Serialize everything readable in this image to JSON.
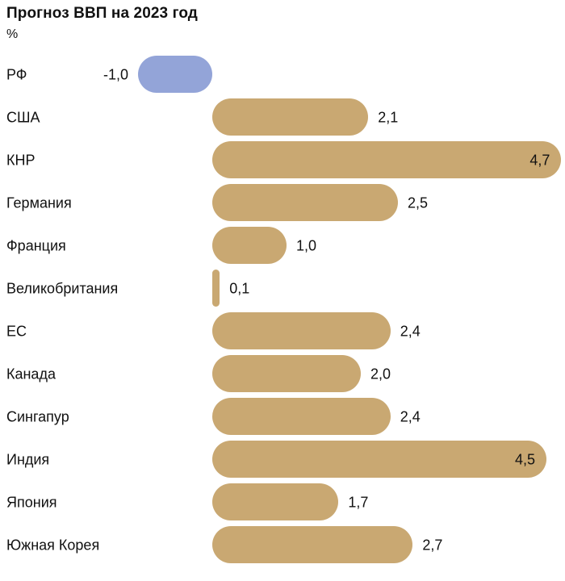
{
  "chart_data": {
    "type": "bar",
    "orientation": "horizontal",
    "title": "Прогноз ВВП на 2023 год",
    "subtitle": "%",
    "categories": [
      "РФ",
      "США",
      "КНР",
      "Германия",
      "Франция",
      "Великобритания",
      "ЕС",
      "Канада",
      "Сингапур",
      "Индия",
      "Япония",
      "Южная Корея"
    ],
    "values": [
      -1.0,
      2.1,
      4.7,
      2.5,
      1.0,
      0.1,
      2.4,
      2.0,
      2.4,
      4.5,
      1.7,
      2.7
    ],
    "value_labels": [
      "-1,0",
      "2,1",
      "4,7",
      "2,5",
      "1,0",
      "0,1",
      "2,4",
      "2,0",
      "2,4",
      "4,5",
      "1,7",
      "2,7"
    ],
    "colors": {
      "default": "#C9A872",
      "highlight": "#93A4D8"
    },
    "highlight_index": 0,
    "xlim": [
      -1.0,
      4.7
    ],
    "grid": false,
    "legend": "none"
  }
}
